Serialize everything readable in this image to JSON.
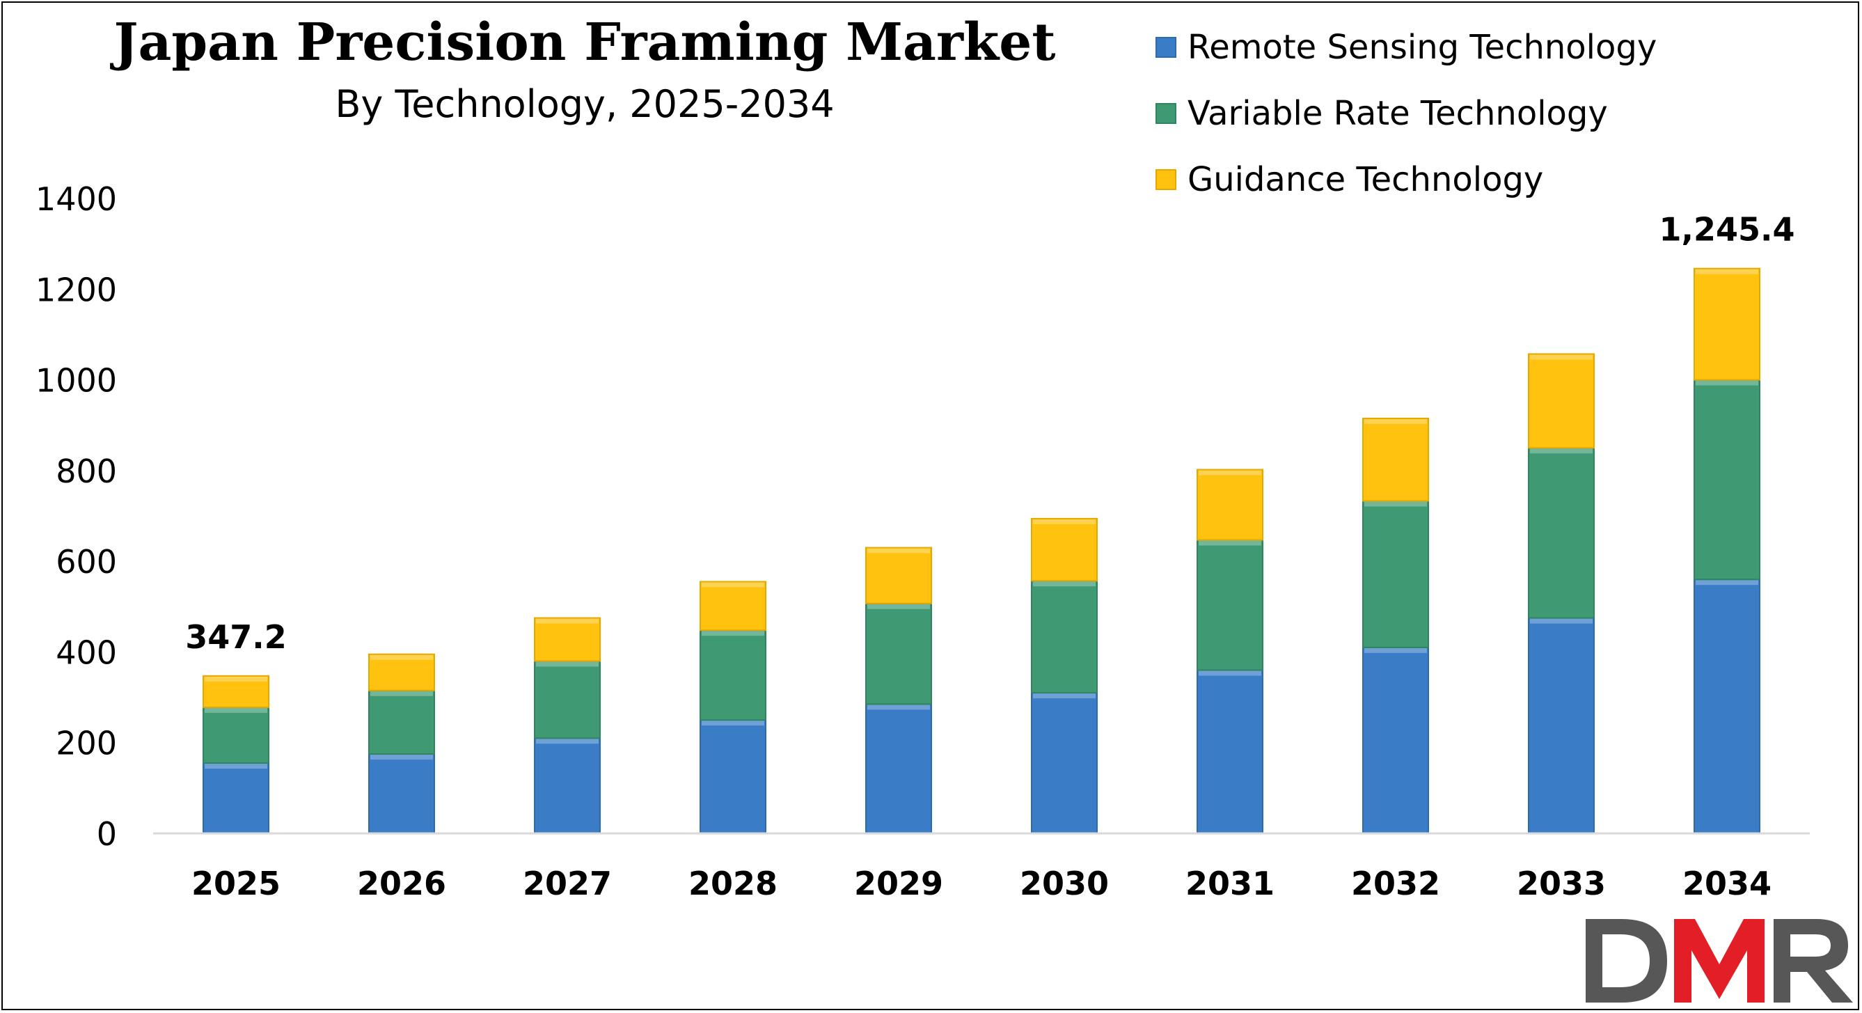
{
  "chart_data": {
    "type": "bar",
    "stacked": true,
    "title": "Japan Precision Framing Market",
    "subtitle": "By Technology, 2025-2034",
    "categories": [
      "2025",
      "2026",
      "2027",
      "2028",
      "2029",
      "2030",
      "2031",
      "2032",
      "2033",
      "2034"
    ],
    "series": [
      {
        "name": "Remote Sensing Technology",
        "color": "#3a7dc6",
        "values": [
          155,
          175,
          210,
          250,
          285,
          310,
          360,
          410,
          475,
          560
        ]
      },
      {
        "name": "Variable Rate Technology",
        "color": "#3f9a73",
        "values": [
          123,
          140,
          170,
          198,
          222,
          247,
          287,
          323,
          375,
          440
        ]
      },
      {
        "name": "Guidance Technology",
        "color": "#ffc20e",
        "values": [
          69.2,
          80,
          95,
          107,
          123,
          137,
          155,
          182,
          207,
          245.4
        ]
      }
    ],
    "data_labels": [
      {
        "category": "2025",
        "text": "347.2"
      },
      {
        "category": "2034",
        "text": "1,245.4"
      }
    ],
    "y_ticks": [
      0,
      200,
      400,
      600,
      800,
      1000,
      1200,
      1400
    ],
    "ylim": [
      0,
      1400
    ],
    "xlabel": "",
    "ylabel": "",
    "grid": false,
    "legend_position": "top-right"
  },
  "logo": {
    "text": "DMR",
    "colors": [
      "#575757",
      "#e41e26"
    ]
  }
}
